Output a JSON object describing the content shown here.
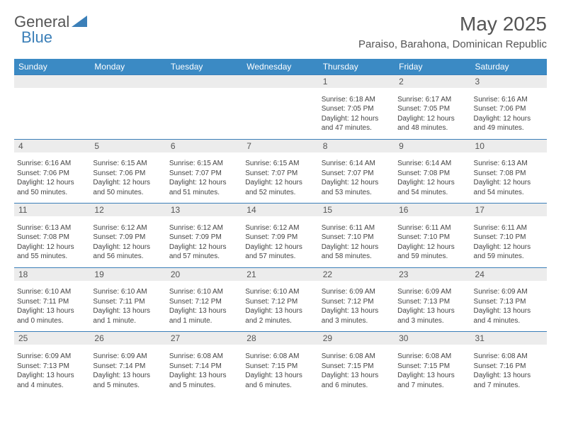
{
  "logo": {
    "text1": "General",
    "text2": "Blue"
  },
  "title": "May 2025",
  "location": "Paraiso, Barahona, Dominican Republic",
  "colors": {
    "header_bg": "#3b8ac4",
    "header_text": "#ffffff",
    "border": "#3b7fb8",
    "daynum_bg": "#ececec",
    "text": "#555555",
    "info_text": "#444444",
    "background": "#ffffff"
  },
  "weekdays": [
    "Sunday",
    "Monday",
    "Tuesday",
    "Wednesday",
    "Thursday",
    "Friday",
    "Saturday"
  ],
  "weeks": [
    [
      null,
      null,
      null,
      null,
      {
        "n": "1",
        "sr": "6:18 AM",
        "ss": "7:05 PM",
        "dl": "12 hours and 47 minutes."
      },
      {
        "n": "2",
        "sr": "6:17 AM",
        "ss": "7:05 PM",
        "dl": "12 hours and 48 minutes."
      },
      {
        "n": "3",
        "sr": "6:16 AM",
        "ss": "7:06 PM",
        "dl": "12 hours and 49 minutes."
      }
    ],
    [
      {
        "n": "4",
        "sr": "6:16 AM",
        "ss": "7:06 PM",
        "dl": "12 hours and 50 minutes."
      },
      {
        "n": "5",
        "sr": "6:15 AM",
        "ss": "7:06 PM",
        "dl": "12 hours and 50 minutes."
      },
      {
        "n": "6",
        "sr": "6:15 AM",
        "ss": "7:07 PM",
        "dl": "12 hours and 51 minutes."
      },
      {
        "n": "7",
        "sr": "6:15 AM",
        "ss": "7:07 PM",
        "dl": "12 hours and 52 minutes."
      },
      {
        "n": "8",
        "sr": "6:14 AM",
        "ss": "7:07 PM",
        "dl": "12 hours and 53 minutes."
      },
      {
        "n": "9",
        "sr": "6:14 AM",
        "ss": "7:08 PM",
        "dl": "12 hours and 54 minutes."
      },
      {
        "n": "10",
        "sr": "6:13 AM",
        "ss": "7:08 PM",
        "dl": "12 hours and 54 minutes."
      }
    ],
    [
      {
        "n": "11",
        "sr": "6:13 AM",
        "ss": "7:08 PM",
        "dl": "12 hours and 55 minutes."
      },
      {
        "n": "12",
        "sr": "6:12 AM",
        "ss": "7:09 PM",
        "dl": "12 hours and 56 minutes."
      },
      {
        "n": "13",
        "sr": "6:12 AM",
        "ss": "7:09 PM",
        "dl": "12 hours and 57 minutes."
      },
      {
        "n": "14",
        "sr": "6:12 AM",
        "ss": "7:09 PM",
        "dl": "12 hours and 57 minutes."
      },
      {
        "n": "15",
        "sr": "6:11 AM",
        "ss": "7:10 PM",
        "dl": "12 hours and 58 minutes."
      },
      {
        "n": "16",
        "sr": "6:11 AM",
        "ss": "7:10 PM",
        "dl": "12 hours and 59 minutes."
      },
      {
        "n": "17",
        "sr": "6:11 AM",
        "ss": "7:10 PM",
        "dl": "12 hours and 59 minutes."
      }
    ],
    [
      {
        "n": "18",
        "sr": "6:10 AM",
        "ss": "7:11 PM",
        "dl": "13 hours and 0 minutes."
      },
      {
        "n": "19",
        "sr": "6:10 AM",
        "ss": "7:11 PM",
        "dl": "13 hours and 1 minute."
      },
      {
        "n": "20",
        "sr": "6:10 AM",
        "ss": "7:12 PM",
        "dl": "13 hours and 1 minute."
      },
      {
        "n": "21",
        "sr": "6:10 AM",
        "ss": "7:12 PM",
        "dl": "13 hours and 2 minutes."
      },
      {
        "n": "22",
        "sr": "6:09 AM",
        "ss": "7:12 PM",
        "dl": "13 hours and 3 minutes."
      },
      {
        "n": "23",
        "sr": "6:09 AM",
        "ss": "7:13 PM",
        "dl": "13 hours and 3 minutes."
      },
      {
        "n": "24",
        "sr": "6:09 AM",
        "ss": "7:13 PM",
        "dl": "13 hours and 4 minutes."
      }
    ],
    [
      {
        "n": "25",
        "sr": "6:09 AM",
        "ss": "7:13 PM",
        "dl": "13 hours and 4 minutes."
      },
      {
        "n": "26",
        "sr": "6:09 AM",
        "ss": "7:14 PM",
        "dl": "13 hours and 5 minutes."
      },
      {
        "n": "27",
        "sr": "6:08 AM",
        "ss": "7:14 PM",
        "dl": "13 hours and 5 minutes."
      },
      {
        "n": "28",
        "sr": "6:08 AM",
        "ss": "7:15 PM",
        "dl": "13 hours and 6 minutes."
      },
      {
        "n": "29",
        "sr": "6:08 AM",
        "ss": "7:15 PM",
        "dl": "13 hours and 6 minutes."
      },
      {
        "n": "30",
        "sr": "6:08 AM",
        "ss": "7:15 PM",
        "dl": "13 hours and 7 minutes."
      },
      {
        "n": "31",
        "sr": "6:08 AM",
        "ss": "7:16 PM",
        "dl": "13 hours and 7 minutes."
      }
    ]
  ],
  "labels": {
    "sunrise": "Sunrise:",
    "sunset": "Sunset:",
    "daylight": "Daylight:"
  }
}
